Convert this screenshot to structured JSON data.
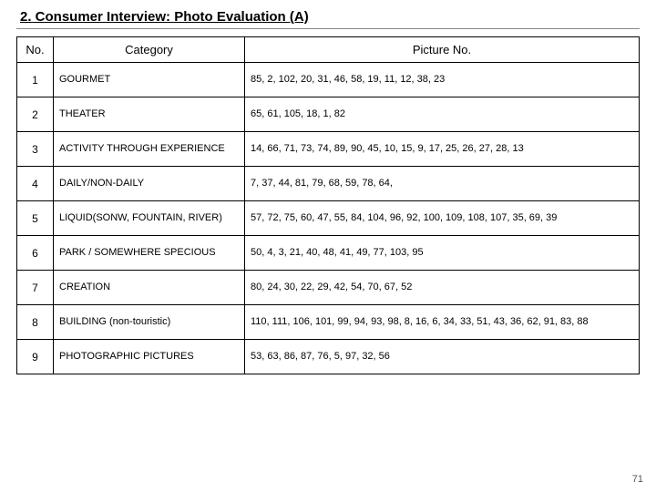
{
  "title": "2. Consumer Interview: Photo Evaluation  (A)",
  "page_number": "71",
  "table": {
    "headers": {
      "no": "No.",
      "category": "Category",
      "picture": "Picture No."
    },
    "rows": [
      {
        "no": "1",
        "category": "GOURMET",
        "picture": "85, 2, 102, 20, 31, 46, 58, 19, 11, 12, 38, 23"
      },
      {
        "no": "2",
        "category": "THEATER",
        "picture": "65, 61, 105, 18, 1, 82"
      },
      {
        "no": "3",
        "category": "ACTIVITY  THROUGH EXPERIENCE",
        "picture": "14, 66, 71, 73, 74, 89, 90, 45, 10, 15, 9, 17, 25, 26, 27, 28, 13"
      },
      {
        "no": "4",
        "category": "DAILY/NON-DAILY",
        "picture": "7, 37, 44, 81, 79, 68, 59, 78, 64,"
      },
      {
        "no": "5",
        "category": "LIQUID(SONW, FOUNTAIN, RIVER)",
        "picture": "57, 72, 75, 60, 47, 55, 84, 104, 96, 92, 100, 109, 108, 107, 35, 69, 39"
      },
      {
        "no": "6",
        "category": "PARK / SOMEWHERE SPECIOUS",
        "picture": "50, 4, 3, 21, 40, 48, 41, 49, 77, 103, 95"
      },
      {
        "no": "7",
        "category": "CREATION",
        "picture": "80, 24, 30, 22, 29, 42, 54, 70, 67, 52"
      },
      {
        "no": "8",
        "category": "BUILDING (non-touristic)",
        "picture": "110, 111, 106, 101, 99, 94, 93, 98, 8, 16, 6, 34, 33, 51, 43, 36, 62, 91, 83, 88"
      },
      {
        "no": "9",
        "category": "PHOTOGRAPHIC PICTURES",
        "picture": "53, 63, 86, 87, 76, 5, 97, 32, 56"
      }
    ]
  }
}
